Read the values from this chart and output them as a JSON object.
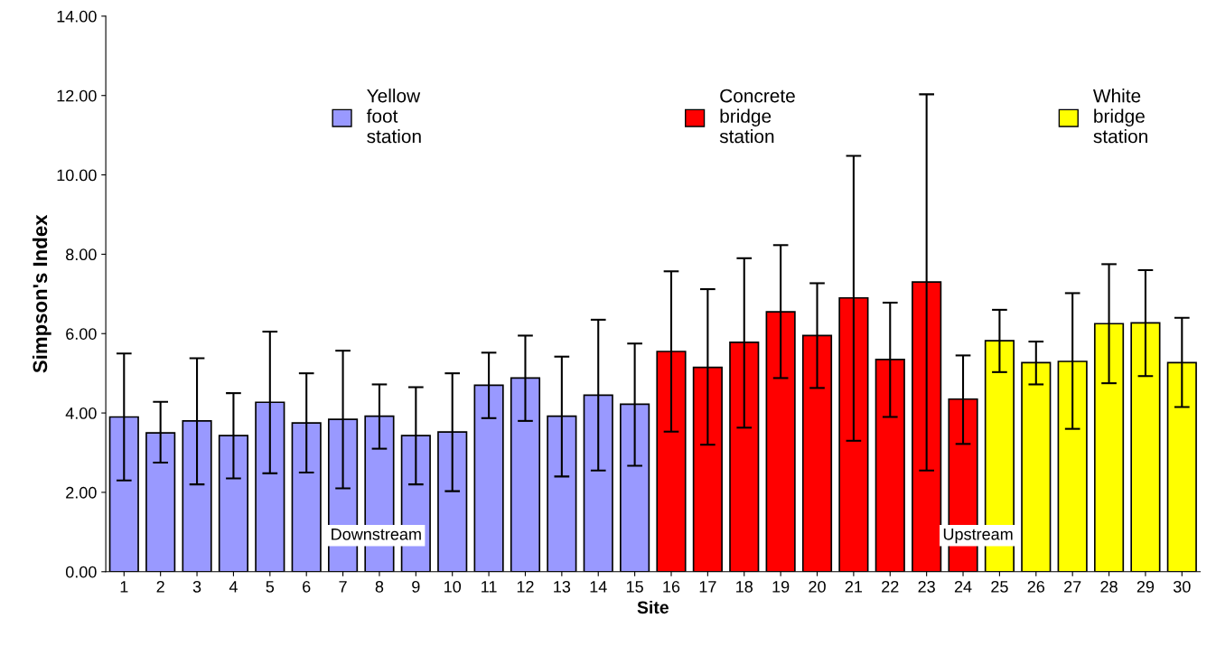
{
  "chart_data": {
    "type": "bar",
    "xlabel": "Site",
    "ylabel": "Simpson's Index",
    "categories": [
      "1",
      "2",
      "3",
      "4",
      "5",
      "6",
      "7",
      "8",
      "9",
      "10",
      "11",
      "12",
      "13",
      "14",
      "15",
      "16",
      "17",
      "18",
      "19",
      "20",
      "21",
      "22",
      "23",
      "24",
      "25",
      "26",
      "27",
      "28",
      "29",
      "30"
    ],
    "series": [
      {
        "name": "Yellow foot station",
        "color": "#9999ff",
        "values": [
          3.9,
          3.5,
          3.8,
          3.43,
          4.27,
          3.75,
          3.84,
          3.92,
          3.43,
          3.52,
          4.7,
          4.88,
          3.92,
          4.45,
          4.22,
          null,
          null,
          null,
          null,
          null,
          null,
          null,
          null,
          null,
          null,
          null,
          null,
          null,
          null,
          null
        ],
        "errors": [
          [
            2.3,
            5.5
          ],
          [
            2.75,
            4.28
          ],
          [
            2.2,
            5.38
          ],
          [
            2.35,
            4.5
          ],
          [
            2.48,
            6.05
          ],
          [
            2.5,
            5.0
          ],
          [
            2.1,
            5.57
          ],
          [
            3.1,
            4.72
          ],
          [
            2.2,
            4.65
          ],
          [
            2.03,
            5.0
          ],
          [
            3.87,
            5.52
          ],
          [
            3.8,
            5.95
          ],
          [
            2.4,
            5.42
          ],
          [
            2.55,
            6.35
          ],
          [
            2.67,
            5.75
          ],
          null,
          null,
          null,
          null,
          null,
          null,
          null,
          null,
          null,
          null,
          null,
          null,
          null,
          null,
          null
        ]
      },
      {
        "name": "Concrete bridge station",
        "color": "#ff0000",
        "values": [
          null,
          null,
          null,
          null,
          null,
          null,
          null,
          null,
          null,
          null,
          null,
          null,
          null,
          null,
          null,
          5.55,
          5.15,
          5.78,
          6.55,
          5.95,
          6.9,
          5.35,
          7.3,
          4.35,
          null,
          null,
          null,
          null,
          null,
          null
        ],
        "errors": [
          null,
          null,
          null,
          null,
          null,
          null,
          null,
          null,
          null,
          null,
          null,
          null,
          null,
          null,
          null,
          [
            3.53,
            7.57
          ],
          [
            3.2,
            7.12
          ],
          [
            3.63,
            7.9
          ],
          [
            4.88,
            8.23
          ],
          [
            4.63,
            7.27
          ],
          [
            3.3,
            10.48
          ],
          [
            3.9,
            6.78
          ],
          [
            2.55,
            12.03
          ],
          [
            3.22,
            5.45
          ],
          null,
          null,
          null,
          null,
          null,
          null
        ]
      },
      {
        "name": "White bridge station",
        "color": "#ffff00",
        "values": [
          null,
          null,
          null,
          null,
          null,
          null,
          null,
          null,
          null,
          null,
          null,
          null,
          null,
          null,
          null,
          null,
          null,
          null,
          null,
          null,
          null,
          null,
          null,
          null,
          5.82,
          5.27,
          5.3,
          6.25,
          6.27,
          5.27
        ],
        "errors": [
          null,
          null,
          null,
          null,
          null,
          null,
          null,
          null,
          null,
          null,
          null,
          null,
          null,
          null,
          null,
          null,
          null,
          null,
          null,
          null,
          null,
          null,
          null,
          null,
          [
            5.03,
            6.6
          ],
          [
            4.72,
            5.8
          ],
          [
            3.6,
            7.02
          ],
          [
            4.75,
            7.75
          ],
          [
            4.93,
            7.6
          ],
          [
            4.15,
            6.4
          ]
        ]
      }
    ],
    "ylim": [
      0,
      14
    ],
    "yticks": [
      {
        "value": 0,
        "label": "0.00"
      },
      {
        "value": 2,
        "label": "2.00"
      },
      {
        "value": 4,
        "label": "4.00"
      },
      {
        "value": 6,
        "label": "6.00"
      },
      {
        "value": 8,
        "label": "8.00"
      },
      {
        "value": 10,
        "label": "10.00"
      },
      {
        "value": 12,
        "label": "12.00"
      },
      {
        "value": 14,
        "label": "14.00"
      }
    ],
    "annotations": [
      "Downstream",
      "Upstream"
    ],
    "legend": "top",
    "grid": false
  }
}
